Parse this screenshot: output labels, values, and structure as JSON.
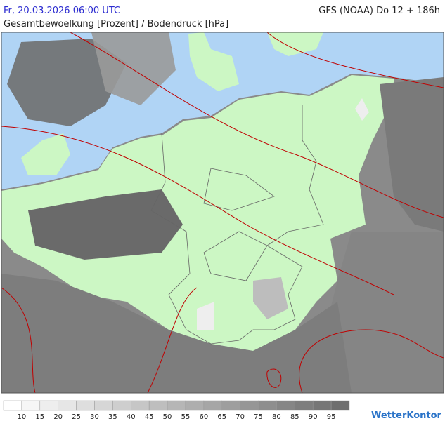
{
  "header": {
    "timestamp": "Fr, 20.03.2026 06:00 UTC",
    "model": "GFS (NOAA) Do 12 + 186h",
    "title": "Gesamtbewoelkung [Prozent] / Bodendruck [hPa]"
  },
  "legend": {
    "labels": [
      10,
      15,
      20,
      25,
      30,
      35,
      40,
      45,
      50,
      55,
      60,
      65,
      70,
      75,
      80,
      85,
      90,
      95
    ],
    "colors": [
      "#ffffff",
      "#f6f6f6",
      "#eeeeee",
      "#e6e6e6",
      "#dedede",
      "#d6d6d6",
      "#cecece",
      "#c6c6c6",
      "#bebebe",
      "#b6b6b6",
      "#aeaeae",
      "#a6a6a6",
      "#9e9e9e",
      "#969696",
      "#8e8e8e",
      "#868686",
      "#7e7e7e",
      "#767676",
      "#6e6e6e"
    ]
  },
  "logo": "WetterKontor"
}
